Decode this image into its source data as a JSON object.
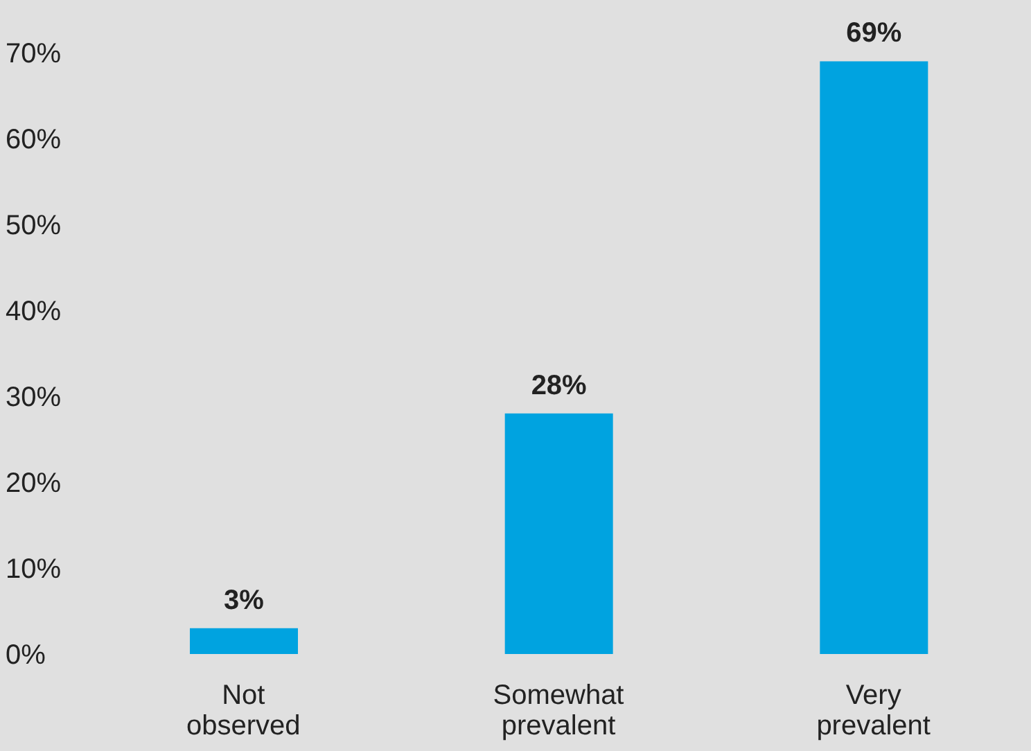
{
  "chart_data": {
    "type": "bar",
    "categories": [
      "Not observed",
      "Somewhat prevalent",
      "Very prevalent"
    ],
    "values": [
      3,
      28,
      69
    ],
    "value_labels": [
      "3%",
      "28%",
      "69%"
    ],
    "color": "#00a3e0",
    "ylim": [
      0,
      70
    ],
    "yticks": [
      {
        "value": 0,
        "label": "0%"
      },
      {
        "value": 10,
        "label": "10%"
      },
      {
        "value": 20,
        "label": "20%"
      },
      {
        "value": 30,
        "label": "30%"
      },
      {
        "value": 40,
        "label": "40%"
      },
      {
        "value": 50,
        "label": "50%"
      },
      {
        "value": 60,
        "label": "60%"
      },
      {
        "value": 70,
        "label": "70%"
      }
    ]
  }
}
